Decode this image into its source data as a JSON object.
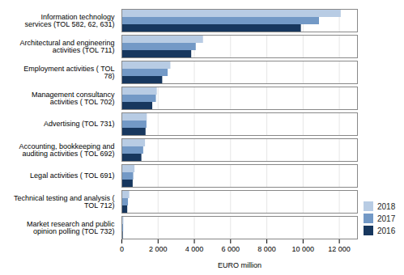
{
  "chart_data": {
    "type": "bar",
    "orientation": "horizontal",
    "categories": [
      "Information technology\nservices (TOL 582, 62, 631)",
      "Architectural and engineering\nactivities (TOL 711)",
      "Employment activities ( TOL\n78)",
      "Management consultancy\nactivities ( TOL 702)",
      "Advertising (TOL 731)",
      "Accounting, bookkeeping and\nauditing activities ( TOL 692)",
      "Legal activities ( TOL 691)",
      "Technical testing and analysis (\nTOL 712)",
      "Market research and public\nopinion polling (TOL 732)"
    ],
    "series": [
      {
        "name": "2018",
        "color": "#b8cce4",
        "values": [
          12100,
          4500,
          2700,
          1950,
          1400,
          1300,
          720,
          430,
          110
        ]
      },
      {
        "name": "2017",
        "color": "#7399c6",
        "values": [
          10900,
          4100,
          2550,
          1900,
          1380,
          1200,
          650,
          360,
          95
        ]
      },
      {
        "name": "2016",
        "color": "#17375e",
        "values": [
          9900,
          3850,
          2250,
          1700,
          1330,
          1100,
          620,
          320,
          75
        ]
      }
    ],
    "xlabel": "EURO million",
    "xlim": [
      0,
      13000
    ],
    "xticks": [
      0,
      {
        "value": 2000,
        "label": "2 000"
      },
      {
        "value": 4000,
        "label": "4 000"
      },
      {
        "value": 6000,
        "label": "6 000"
      },
      {
        "value": 8000,
        "label": "8 000"
      },
      {
        "value": 10000,
        "label": "10 000"
      },
      {
        "value": 12000,
        "label": "12 000"
      }
    ],
    "grid": true,
    "legend": "lower right"
  }
}
